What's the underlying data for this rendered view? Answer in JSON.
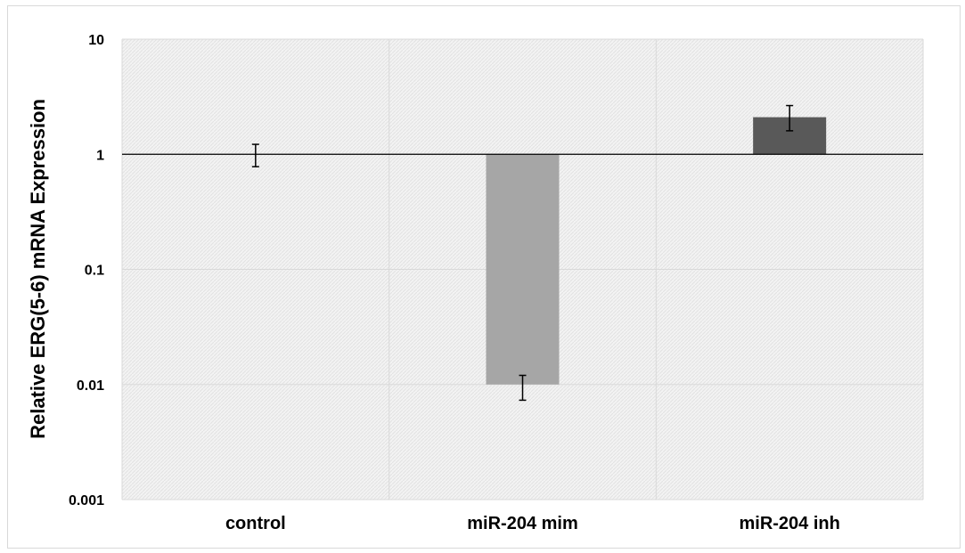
{
  "chart_data": {
    "type": "bar",
    "title": "",
    "xlabel": "",
    "ylabel": "Relative ERG(5-6) mRNA Expression",
    "yscale": "log",
    "baseline": 1,
    "ylim": [
      0.001,
      10
    ],
    "yticks": [
      10,
      1,
      0.1,
      0.01,
      0.001
    ],
    "ytick_labels": [
      "10",
      "1",
      "0.1",
      "0.01",
      "0.001"
    ],
    "categories": [
      "control",
      "miR-204 mim",
      "miR-204 inh"
    ],
    "values": [
      1,
      0.01,
      2.1
    ],
    "error_low": [
      0.78,
      0.0073,
      1.6
    ],
    "error_high": [
      1.22,
      0.012,
      2.65
    ],
    "colors": [
      "#a6a6a6",
      "#a6a6a6",
      "#595959"
    ],
    "grid": true,
    "plot_background": "#f2f2f2"
  }
}
